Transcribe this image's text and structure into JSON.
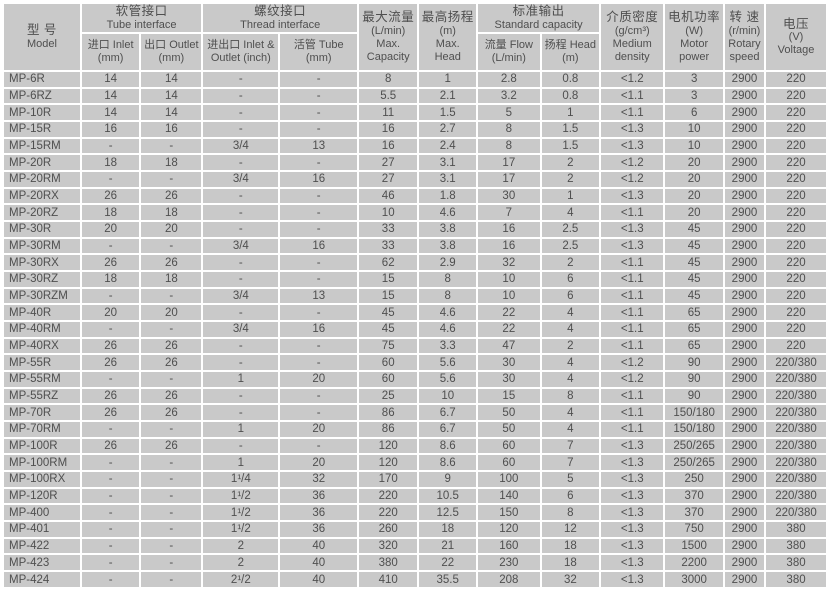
{
  "colors": {
    "cell_bg": "#c9c9c9",
    "grid": "#ffffff",
    "text": "#4f4f4f"
  },
  "header": {
    "model": {
      "zh": "型 号",
      "en": "Model"
    },
    "tube_interface": {
      "zh": "软管接口",
      "en": "Tube interface"
    },
    "thread_interface": {
      "zh": "螺纹接口",
      "en": "Thread interface"
    },
    "tube_inlet": {
      "line1": "进口 Inlet",
      "line2": "(mm)"
    },
    "tube_outlet": {
      "line1": "出口 Outlet",
      "line2": "(mm)"
    },
    "thread_io": {
      "line1": "进出口 Inlet &",
      "line2": "Outlet  (inch)"
    },
    "thread_tube": {
      "line1": "活管 Tube",
      "line2": "(mm)"
    },
    "max_capacity": {
      "zh": "最大流量",
      "unit": "(L/min)",
      "en1": "Max.",
      "en2": "Capacity"
    },
    "max_head": {
      "zh": "最高扬程",
      "unit": "(m)",
      "en1": "Max.",
      "en2": "Head"
    },
    "standard_capacity": {
      "zh": "标准输出",
      "en": "Standard capacity"
    },
    "flow": {
      "line1": "流量 Flow",
      "line2": "(L/min)"
    },
    "head": {
      "line1": "扬程 Head",
      "line2": "(m)"
    },
    "medium_density": {
      "zh": "介质密度",
      "unit": "(g/cm³)",
      "en1": "Medium",
      "en2": "density"
    },
    "motor_power": {
      "zh": "电机功率",
      "unit": "(W)",
      "en1": "Motor",
      "en2": "power"
    },
    "rotary_speed": {
      "zh": "转 速",
      "unit": "(r/min)",
      "en1": "Rotary",
      "en2": "speed"
    },
    "voltage": {
      "zh": "电压",
      "unit": "(V)",
      "en1": "Voltage"
    }
  },
  "columns": [
    "model",
    "tube_inlet_mm",
    "tube_outlet_mm",
    "thread_inlet_outlet_inch",
    "thread_tube_mm",
    "max_capacity_lmin",
    "max_head_m",
    "std_flow_lmin",
    "std_head_m",
    "medium_density_gcm3",
    "motor_power_w",
    "rotary_speed_rmin",
    "voltage_v"
  ],
  "rows": [
    [
      "MP-6R",
      "14",
      "14",
      "-",
      "-",
      "8",
      "1",
      "2.8",
      "0.8",
      "<1.2",
      "3",
      "2900",
      "220"
    ],
    [
      "MP-6RZ",
      "14",
      "14",
      "-",
      "-",
      "5.5",
      "2.1",
      "3.2",
      "0.8",
      "<1.1",
      "3",
      "2900",
      "220"
    ],
    [
      "MP-10R",
      "14",
      "14",
      "-",
      "-",
      "11",
      "1.5",
      "5",
      "1",
      "<1.1",
      "6",
      "2900",
      "220"
    ],
    [
      "MP-15R",
      "16",
      "16",
      "-",
      "-",
      "16",
      "2.7",
      "8",
      "1.5",
      "<1.3",
      "10",
      "2900",
      "220"
    ],
    [
      "MP-15RM",
      "-",
      "-",
      "3/4",
      "13",
      "16",
      "2.4",
      "8",
      "1.5",
      "<1.3",
      "10",
      "2900",
      "220"
    ],
    [
      "MP-20R",
      "18",
      "18",
      "-",
      "-",
      "27",
      "3.1",
      "17",
      "2",
      "<1.2",
      "20",
      "2900",
      "220"
    ],
    [
      "MP-20RM",
      "-",
      "-",
      "3/4",
      "16",
      "27",
      "3.1",
      "17",
      "2",
      "<1.2",
      "20",
      "2900",
      "220"
    ],
    [
      "MP-20RX",
      "26",
      "26",
      "-",
      "-",
      "46",
      "1.8",
      "30",
      "1",
      "<1.3",
      "20",
      "2900",
      "220"
    ],
    [
      "MP-20RZ",
      "18",
      "18",
      "-",
      "-",
      "10",
      "4.6",
      "7",
      "4",
      "<1.1",
      "20",
      "2900",
      "220"
    ],
    [
      "MP-30R",
      "20",
      "20",
      "-",
      "-",
      "33",
      "3.8",
      "16",
      "2.5",
      "<1.3",
      "45",
      "2900",
      "220"
    ],
    [
      "MP-30RM",
      "-",
      "-",
      "3/4",
      "16",
      "33",
      "3.8",
      "16",
      "2.5",
      "<1.3",
      "45",
      "2900",
      "220"
    ],
    [
      "MP-30RX",
      "26",
      "26",
      "-",
      "-",
      "62",
      "2.9",
      "32",
      "2",
      "<1.1",
      "45",
      "2900",
      "220"
    ],
    [
      "MP-30RZ",
      "18",
      "18",
      "-",
      "-",
      "15",
      "8",
      "10",
      "6",
      "<1.1",
      "45",
      "2900",
      "220"
    ],
    [
      "MP-30RZM",
      "-",
      "-",
      "3/4",
      "13",
      "15",
      "8",
      "10",
      "6",
      "<1.1",
      "45",
      "2900",
      "220"
    ],
    [
      "MP-40R",
      "20",
      "20",
      "-",
      "-",
      "45",
      "4.6",
      "22",
      "4",
      "<1.1",
      "65",
      "2900",
      "220"
    ],
    [
      "MP-40RM",
      "-",
      "-",
      "3/4",
      "16",
      "45",
      "4.6",
      "22",
      "4",
      "<1.1",
      "65",
      "2900",
      "220"
    ],
    [
      "MP-40RX",
      "26",
      "26",
      "-",
      "-",
      "75",
      "3.3",
      "47",
      "2",
      "<1.1",
      "65",
      "2900",
      "220"
    ],
    [
      "MP-55R",
      "26",
      "26",
      "-",
      "-",
      "60",
      "5.6",
      "30",
      "4",
      "<1.2",
      "90",
      "2900",
      "220/380"
    ],
    [
      "MP-55RM",
      "-",
      "-",
      "1",
      "20",
      "60",
      "5.6",
      "30",
      "4",
      "<1.2",
      "90",
      "2900",
      "220/380"
    ],
    [
      "MP-55RZ",
      "26",
      "26",
      "-",
      "-",
      "25",
      "10",
      "15",
      "8",
      "<1.1",
      "90",
      "2900",
      "220/380"
    ],
    [
      "MP-70R",
      "26",
      "26",
      "-",
      "-",
      "86",
      "6.7",
      "50",
      "4",
      "<1.1",
      "150/180",
      "2900",
      "220/380"
    ],
    [
      "MP-70RM",
      "-",
      "-",
      "1",
      "20",
      "86",
      "6.7",
      "50",
      "4",
      "<1.1",
      "150/180",
      "2900",
      "220/380"
    ],
    [
      "MP-100R",
      "26",
      "26",
      "-",
      "-",
      "120",
      "8.6",
      "60",
      "7",
      "<1.3",
      "250/265",
      "2900",
      "220/380"
    ],
    [
      "MP-100RM",
      "-",
      "-",
      "1",
      "20",
      "120",
      "8.6",
      "60",
      "7",
      "<1.3",
      "250/265",
      "2900",
      "220/380"
    ],
    [
      "MP-100RX",
      "-",
      "-",
      "1¹/4",
      "32",
      "170",
      "9",
      "100",
      "5",
      "<1.3",
      "250",
      "2900",
      "220/380"
    ],
    [
      "MP-120R",
      "-",
      "-",
      "1¹/2",
      "36",
      "220",
      "10.5",
      "140",
      "6",
      "<1.3",
      "370",
      "2900",
      "220/380"
    ],
    [
      "MP-400",
      "-",
      "-",
      "1¹/2",
      "36",
      "220",
      "12.5",
      "150",
      "8",
      "<1.3",
      "370",
      "2900",
      "220/380"
    ],
    [
      "MP-401",
      "-",
      "-",
      "1¹/2",
      "36",
      "260",
      "18",
      "120",
      "12",
      "<1.3",
      "750",
      "2900",
      "380"
    ],
    [
      "MP-422",
      "-",
      "-",
      "2",
      "40",
      "320",
      "21",
      "160",
      "18",
      "<1.3",
      "1500",
      "2900",
      "380"
    ],
    [
      "MP-423",
      "-",
      "-",
      "2",
      "40",
      "380",
      "22",
      "230",
      "18",
      "<1.3",
      "2200",
      "2900",
      "380"
    ],
    [
      "MP-424",
      "-",
      "-",
      "2¹/2",
      "40",
      "410",
      "35.5",
      "208",
      "32",
      "<1.3",
      "3000",
      "2900",
      "380"
    ]
  ]
}
